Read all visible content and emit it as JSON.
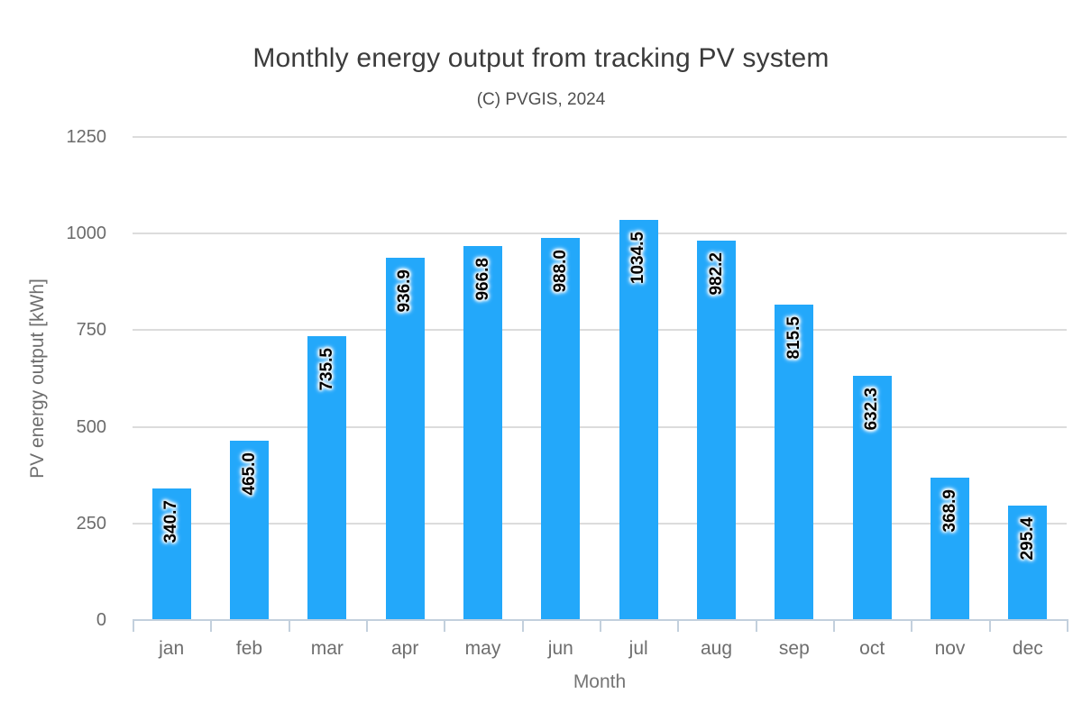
{
  "chart_data": {
    "type": "bar",
    "title": "Monthly energy output from tracking PV system",
    "subtitle": "(C) PVGIS, 2024",
    "xlabel": "Month",
    "ylabel": "PV energy output [kWh]",
    "categories": [
      "jan",
      "feb",
      "mar",
      "apr",
      "may",
      "jun",
      "jul",
      "aug",
      "sep",
      "oct",
      "nov",
      "dec"
    ],
    "values": [
      340.7,
      465.0,
      735.5,
      936.9,
      966.8,
      988.0,
      1034.5,
      982.2,
      815.5,
      632.3,
      368.9,
      295.4
    ],
    "value_labels": [
      "340.7",
      "465.0",
      "735.5",
      "936.9",
      "966.8",
      "988.0",
      "1034.5",
      "982.2",
      "815.5",
      "632.3",
      "368.9",
      "295.4"
    ],
    "yticks": [
      0,
      250,
      500,
      750,
      1000,
      1250
    ],
    "ylim": [
      0,
      1250
    ],
    "grid": true,
    "legend": "none",
    "colors": {
      "bar": "#23a8fa",
      "gridline": "#dcdcdc",
      "axis_line": "#c3d0dd",
      "title_text": "#3b3b3b",
      "tick_text": "#6b6b6b",
      "value_label_text": "#000000",
      "value_label_halo": "#ffffff",
      "background": "#ffffff"
    }
  }
}
